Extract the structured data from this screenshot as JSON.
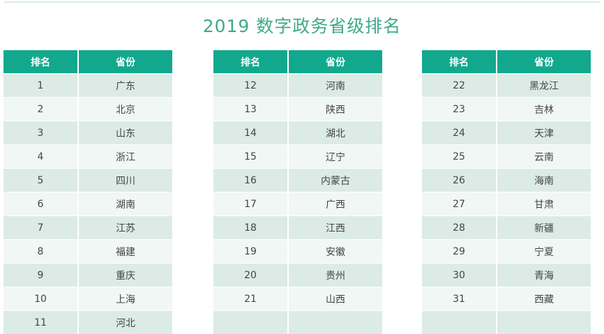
{
  "title": "2019 数字政务省级排名",
  "headers": {
    "rank": "排名",
    "province": "省份"
  },
  "colors": {
    "header": "#12a88d",
    "row_dark": "#dcebe5",
    "row_light": "#f1f7f4",
    "title": "#3fa98a"
  },
  "tables": [
    [
      {
        "rank": "1",
        "province": "广东"
      },
      {
        "rank": "2",
        "province": "北京"
      },
      {
        "rank": "3",
        "province": "山东"
      },
      {
        "rank": "4",
        "province": "浙江"
      },
      {
        "rank": "5",
        "province": "四川"
      },
      {
        "rank": "6",
        "province": "湖南"
      },
      {
        "rank": "7",
        "province": "江苏"
      },
      {
        "rank": "8",
        "province": "福建"
      },
      {
        "rank": "9",
        "province": "重庆"
      },
      {
        "rank": "10",
        "province": "上海"
      },
      {
        "rank": "11",
        "province": "河北"
      }
    ],
    [
      {
        "rank": "12",
        "province": "河南"
      },
      {
        "rank": "13",
        "province": "陕西"
      },
      {
        "rank": "14",
        "province": "湖北"
      },
      {
        "rank": "15",
        "province": "辽宁"
      },
      {
        "rank": "16",
        "province": "内蒙古"
      },
      {
        "rank": "17",
        "province": "广西"
      },
      {
        "rank": "18",
        "province": "江西"
      },
      {
        "rank": "19",
        "province": "安徽"
      },
      {
        "rank": "20",
        "province": "贵州"
      },
      {
        "rank": "21",
        "province": "山西"
      },
      {
        "rank": "",
        "province": ""
      }
    ],
    [
      {
        "rank": "22",
        "province": "黑龙江"
      },
      {
        "rank": "23",
        "province": "吉林"
      },
      {
        "rank": "24",
        "province": "天津"
      },
      {
        "rank": "25",
        "province": "云南"
      },
      {
        "rank": "26",
        "province": "海南"
      },
      {
        "rank": "27",
        "province": "甘肃"
      },
      {
        "rank": "28",
        "province": "新疆"
      },
      {
        "rank": "29",
        "province": "宁夏"
      },
      {
        "rank": "30",
        "province": "青海"
      },
      {
        "rank": "31",
        "province": "西藏"
      },
      {
        "rank": "",
        "province": ""
      }
    ]
  ]
}
